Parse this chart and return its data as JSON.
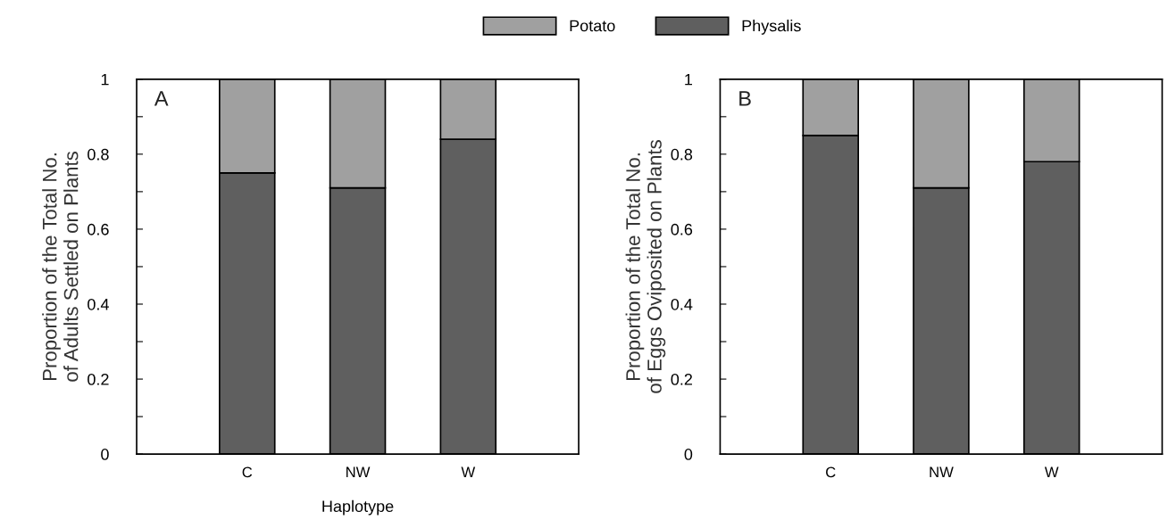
{
  "chart_data": [
    {
      "type": "bar",
      "stacked": true,
      "categories": [
        "C",
        "NW",
        "W"
      ],
      "xlabel": "Haplotype",
      "ylabel": "Proportion of the Total No.\nof Adults Settled on Plants",
      "annotations": [
        "A"
      ],
      "legend": "top",
      "series": [
        {
          "name": "Physalis",
          "color": "#5f5f5f",
          "values": [
            0.75,
            0.71,
            0.84
          ]
        },
        {
          "name": "Potato",
          "color": "#a0a0a0",
          "values": [
            0.25,
            0.29,
            0.16
          ]
        }
      ],
      "ylim": [
        0,
        1
      ],
      "yticks": [
        0,
        {
          "value": 0.1,
          "label": null
        },
        0.2,
        {
          "value": 0.3,
          "label": null
        },
        0.4,
        {
          "value": 0.5,
          "label": null
        },
        0.6,
        {
          "value": 0.7,
          "label": null
        },
        0.8,
        {
          "value": 0.9,
          "label": null
        },
        1
      ],
      "grid": false
    },
    {
      "type": "bar",
      "stacked": true,
      "categories": [
        "C",
        "NW",
        "W"
      ],
      "ylabel": "Proportion of the Total No.\nof Eggs Oviposited on Plants",
      "annotations": [
        "B"
      ],
      "series": [
        {
          "color": "#5f5f5f",
          "values": [
            0.85,
            0.71,
            0.78
          ]
        },
        {
          "color": "#a0a0a0",
          "values": [
            0.15,
            0.29,
            0.22
          ]
        }
      ],
      "ylim": [
        0,
        1
      ],
      "yticks": [
        0,
        {
          "value": 0.1,
          "label": null
        },
        0.2,
        {
          "value": 0.3,
          "label": null
        },
        0.4,
        {
          "value": 0.5,
          "label": null
        },
        0.6,
        {
          "value": 0.7,
          "label": null
        },
        0.8,
        {
          "value": 0.9,
          "label": null
        },
        1
      ],
      "grid": false
    }
  ]
}
